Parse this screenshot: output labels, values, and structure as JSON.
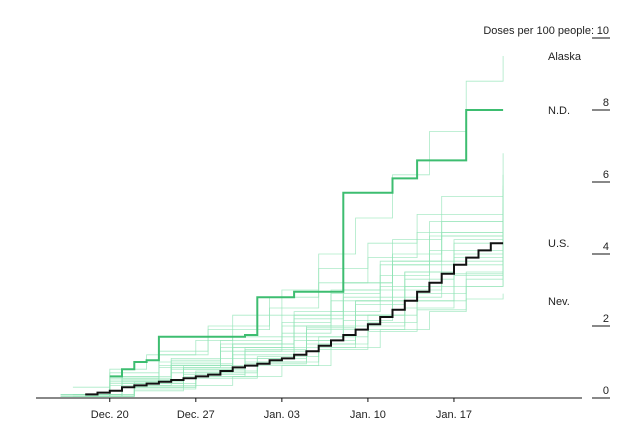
{
  "chart_data": {
    "type": "line",
    "ylabel": "Doses per 100 people:",
    "ylim": [
      0,
      10
    ],
    "xlim": [
      "2020-12-14",
      "2021-01-24"
    ],
    "y_ticks": [
      "0",
      "2",
      "4",
      "6",
      "8",
      "10"
    ],
    "x_ticks": [
      {
        "label": "Dec. 20",
        "date": "2020-12-20"
      },
      {
        "label": "Dec. 27",
        "date": "2020-12-27"
      },
      {
        "label": "Jan. 03",
        "date": "2021-01-03"
      },
      {
        "label": "Jan. 10",
        "date": "2021-01-10"
      },
      {
        "label": "Jan. 17",
        "date": "2021-01-17"
      }
    ],
    "step": true,
    "colors": {
      "highlight": "#3dbd70",
      "us": "#111111",
      "states": "#8fe3b4",
      "axis": "#111111"
    },
    "highlighted_series": [
      {
        "name": "N.D.",
        "label": "N.D.",
        "color": "#3dbd70",
        "points": [
          [
            "2020-12-20",
            0.6
          ],
          [
            "2020-12-21",
            0.8
          ],
          [
            "2020-12-22",
            1.0
          ],
          [
            "2020-12-23",
            1.05
          ],
          [
            "2020-12-24",
            1.7
          ],
          [
            "2020-12-31",
            1.75
          ],
          [
            "2021-01-01",
            2.8
          ],
          [
            "2021-01-04",
            2.95
          ],
          [
            "2021-01-08",
            5.7
          ],
          [
            "2021-01-12",
            6.1
          ],
          [
            "2021-01-14",
            6.6
          ],
          [
            "2021-01-18",
            8.0
          ],
          [
            "2021-01-21",
            8.0
          ]
        ]
      },
      {
        "name": "U.S.",
        "label": "U.S.",
        "color": "#111111",
        "points": [
          [
            "2020-12-18",
            0.1
          ],
          [
            "2020-12-19",
            0.15
          ],
          [
            "2020-12-20",
            0.2
          ],
          [
            "2020-12-21",
            0.3
          ],
          [
            "2020-12-22",
            0.35
          ],
          [
            "2020-12-23",
            0.4
          ],
          [
            "2020-12-24",
            0.45
          ],
          [
            "2020-12-25",
            0.5
          ],
          [
            "2020-12-26",
            0.55
          ],
          [
            "2020-12-27",
            0.6
          ],
          [
            "2020-12-28",
            0.65
          ],
          [
            "2020-12-29",
            0.75
          ],
          [
            "2020-12-30",
            0.85
          ],
          [
            "2020-12-31",
            0.9
          ],
          [
            "2021-01-01",
            0.95
          ],
          [
            "2021-01-02",
            1.05
          ],
          [
            "2021-01-03",
            1.1
          ],
          [
            "2021-01-04",
            1.2
          ],
          [
            "2021-01-05",
            1.3
          ],
          [
            "2021-01-06",
            1.45
          ],
          [
            "2021-01-07",
            1.6
          ],
          [
            "2021-01-08",
            1.75
          ],
          [
            "2021-01-09",
            1.9
          ],
          [
            "2021-01-10",
            2.05
          ],
          [
            "2021-01-11",
            2.25
          ],
          [
            "2021-01-12",
            2.45
          ],
          [
            "2021-01-13",
            2.7
          ],
          [
            "2021-01-14",
            2.95
          ],
          [
            "2021-01-15",
            3.2
          ],
          [
            "2021-01-16",
            3.45
          ],
          [
            "2021-01-17",
            3.7
          ],
          [
            "2021-01-18",
            3.9
          ],
          [
            "2021-01-19",
            4.1
          ],
          [
            "2021-01-20",
            4.3
          ],
          [
            "2021-01-21",
            4.3
          ]
        ]
      }
    ],
    "state_series": [
      {
        "label": "Alaska",
        "points": [
          [
            "2020-12-17",
            0.3
          ],
          [
            "2020-12-20",
            0.8
          ],
          [
            "2020-12-23",
            1.2
          ],
          [
            "2020-12-27",
            1.6
          ],
          [
            "2020-12-30",
            2.3
          ],
          [
            "2021-01-03",
            3.0
          ],
          [
            "2021-01-06",
            4.0
          ],
          [
            "2021-01-09",
            5.0
          ],
          [
            "2021-01-12",
            6.2
          ],
          [
            "2021-01-15",
            7.4
          ],
          [
            "2021-01-18",
            8.8
          ],
          [
            "2021-01-21",
            9.5
          ]
        ]
      },
      {
        "label": "Nev.",
        "points": [
          [
            "2020-12-18",
            0.05
          ],
          [
            "2020-12-22",
            0.2
          ],
          [
            "2020-12-26",
            0.35
          ],
          [
            "2020-12-30",
            0.6
          ],
          [
            "2021-01-03",
            0.9
          ],
          [
            "2021-01-07",
            1.4
          ],
          [
            "2021-01-11",
            1.9
          ],
          [
            "2021-01-15",
            2.4
          ],
          [
            "2021-01-18",
            2.75
          ],
          [
            "2021-01-21",
            2.9
          ]
        ]
      },
      {
        "points": [
          [
            "2020-12-16",
            0.05
          ],
          [
            "2020-12-20",
            0.5
          ],
          [
            "2020-12-25",
            0.9
          ],
          [
            "2020-12-30",
            1.5
          ],
          [
            "2021-01-04",
            2.3
          ],
          [
            "2021-01-08",
            3.2
          ],
          [
            "2021-01-12",
            4.4
          ],
          [
            "2021-01-16",
            5.6
          ],
          [
            "2021-01-21",
            6.8
          ]
        ]
      },
      {
        "points": [
          [
            "2020-12-16",
            0.1
          ],
          [
            "2020-12-20",
            0.55
          ],
          [
            "2020-12-24",
            1.0
          ],
          [
            "2020-12-29",
            1.5
          ],
          [
            "2021-01-03",
            2.1
          ],
          [
            "2021-01-07",
            2.9
          ],
          [
            "2021-01-11",
            3.8
          ],
          [
            "2021-01-15",
            4.9
          ],
          [
            "2021-01-21",
            6.2
          ]
        ]
      },
      {
        "points": [
          [
            "2020-12-17",
            0.1
          ],
          [
            "2020-12-21",
            0.5
          ],
          [
            "2020-12-25",
            0.9
          ],
          [
            "2020-12-30",
            1.4
          ],
          [
            "2021-01-04",
            2.0
          ],
          [
            "2021-01-08",
            2.8
          ],
          [
            "2021-01-12",
            3.7
          ],
          [
            "2021-01-16",
            4.6
          ],
          [
            "2021-01-21",
            5.6
          ]
        ]
      },
      {
        "points": [
          [
            "2020-12-17",
            0.05
          ],
          [
            "2020-12-21",
            0.4
          ],
          [
            "2020-12-26",
            0.8
          ],
          [
            "2020-12-31",
            1.3
          ],
          [
            "2021-01-05",
            1.9
          ],
          [
            "2021-01-09",
            2.7
          ],
          [
            "2021-01-13",
            3.5
          ],
          [
            "2021-01-17",
            4.4
          ],
          [
            "2021-01-21",
            5.2
          ]
        ]
      },
      {
        "points": [
          [
            "2020-12-16",
            0.1
          ],
          [
            "2020-12-20",
            0.6
          ],
          [
            "2020-12-24",
            1.2
          ],
          [
            "2020-12-28",
            1.9
          ],
          [
            "2021-01-02",
            2.5
          ],
          [
            "2021-01-06",
            3.2
          ],
          [
            "2021-01-10",
            3.9
          ],
          [
            "2021-01-14",
            4.6
          ],
          [
            "2021-01-21",
            5.3
          ]
        ]
      },
      {
        "points": [
          [
            "2020-12-18",
            0.05
          ],
          [
            "2020-12-22",
            0.3
          ],
          [
            "2020-12-27",
            0.7
          ],
          [
            "2021-01-01",
            1.1
          ],
          [
            "2021-01-05",
            1.6
          ],
          [
            "2021-01-09",
            2.3
          ],
          [
            "2021-01-13",
            3.1
          ],
          [
            "2021-01-17",
            3.9
          ],
          [
            "2021-01-21",
            4.8
          ]
        ]
      },
      {
        "points": [
          [
            "2020-12-17",
            0.1
          ],
          [
            "2020-12-21",
            0.45
          ],
          [
            "2020-12-25",
            0.8
          ],
          [
            "2020-12-30",
            1.2
          ],
          [
            "2021-01-04",
            1.7
          ],
          [
            "2021-01-08",
            2.3
          ],
          [
            "2021-01-12",
            3.0
          ],
          [
            "2021-01-16",
            3.7
          ],
          [
            "2021-01-21",
            4.5
          ]
        ]
      },
      {
        "points": [
          [
            "2020-12-18",
            0.05
          ],
          [
            "2020-12-22",
            0.35
          ],
          [
            "2020-12-26",
            0.65
          ],
          [
            "2020-12-31",
            1.0
          ],
          [
            "2021-01-05",
            1.5
          ],
          [
            "2021-01-09",
            2.0
          ],
          [
            "2021-01-13",
            2.7
          ],
          [
            "2021-01-17",
            3.4
          ],
          [
            "2021-01-21",
            4.1
          ]
        ]
      },
      {
        "points": [
          [
            "2020-12-16",
            0.05
          ],
          [
            "2020-12-20",
            0.4
          ],
          [
            "2020-12-24",
            0.85
          ],
          [
            "2020-12-29",
            1.3
          ],
          [
            "2021-01-03",
            1.8
          ],
          [
            "2021-01-07",
            2.4
          ],
          [
            "2021-01-11",
            3.1
          ],
          [
            "2021-01-15",
            3.8
          ],
          [
            "2021-01-21",
            4.6
          ]
        ]
      },
      {
        "points": [
          [
            "2020-12-18",
            0.1
          ],
          [
            "2020-12-22",
            0.4
          ],
          [
            "2020-12-27",
            0.75
          ],
          [
            "2021-01-01",
            1.15
          ],
          [
            "2021-01-06",
            1.7
          ],
          [
            "2021-01-10",
            2.3
          ],
          [
            "2021-01-14",
            2.9
          ],
          [
            "2021-01-18",
            3.5
          ],
          [
            "2021-01-21",
            3.9
          ]
        ]
      },
      {
        "points": [
          [
            "2020-12-17",
            0.05
          ],
          [
            "2020-12-21",
            0.3
          ],
          [
            "2020-12-26",
            0.6
          ],
          [
            "2020-12-31",
            0.95
          ],
          [
            "2021-01-05",
            1.4
          ],
          [
            "2021-01-09",
            1.9
          ],
          [
            "2021-01-13",
            2.5
          ],
          [
            "2021-01-17",
            3.1
          ],
          [
            "2021-01-21",
            3.6
          ]
        ]
      },
      {
        "points": [
          [
            "2020-12-16",
            0.1
          ],
          [
            "2020-12-20",
            0.7
          ],
          [
            "2020-12-24",
            1.3
          ],
          [
            "2020-12-28",
            2.0
          ],
          [
            "2021-01-02",
            2.8
          ],
          [
            "2021-01-06",
            3.6
          ],
          [
            "2021-01-10",
            4.3
          ],
          [
            "2021-01-14",
            5.1
          ],
          [
            "2021-01-21",
            5.9
          ]
        ]
      },
      {
        "points": [
          [
            "2020-12-17",
            0.05
          ],
          [
            "2020-12-21",
            0.5
          ],
          [
            "2020-12-25",
            0.95
          ],
          [
            "2020-12-30",
            1.5
          ],
          [
            "2021-01-04",
            2.2
          ],
          [
            "2021-01-08",
            3.0
          ],
          [
            "2021-01-12",
            3.8
          ],
          [
            "2021-01-16",
            4.5
          ],
          [
            "2021-01-21",
            5.0
          ]
        ]
      },
      {
        "points": [
          [
            "2020-12-18",
            0.1
          ],
          [
            "2020-12-22",
            0.45
          ],
          [
            "2020-12-26",
            0.85
          ],
          [
            "2020-12-31",
            1.35
          ],
          [
            "2021-01-05",
            1.95
          ],
          [
            "2021-01-09",
            2.6
          ],
          [
            "2021-01-13",
            3.3
          ],
          [
            "2021-01-17",
            4.0
          ],
          [
            "2021-01-21",
            4.4
          ]
        ]
      },
      {
        "points": [
          [
            "2020-12-16",
            0.05
          ],
          [
            "2020-12-20",
            0.35
          ],
          [
            "2020-12-25",
            0.7
          ],
          [
            "2020-12-30",
            1.1
          ],
          [
            "2021-01-04",
            1.6
          ],
          [
            "2021-01-08",
            2.15
          ],
          [
            "2021-01-12",
            2.8
          ],
          [
            "2021-01-16",
            3.45
          ],
          [
            "2021-01-21",
            4.0
          ]
        ]
      },
      {
        "points": [
          [
            "2020-12-17",
            0.1
          ],
          [
            "2020-12-21",
            0.55
          ],
          [
            "2020-12-25",
            1.05
          ],
          [
            "2020-12-29",
            1.6
          ],
          [
            "2021-01-03",
            2.3
          ],
          [
            "2021-01-07",
            3.0
          ],
          [
            "2021-01-11",
            3.7
          ],
          [
            "2021-01-15",
            4.5
          ],
          [
            "2021-01-21",
            5.4
          ]
        ]
      },
      {
        "points": [
          [
            "2020-12-18",
            0.05
          ],
          [
            "2020-12-22",
            0.3
          ],
          [
            "2020-12-27",
            0.6
          ],
          [
            "2021-01-01",
            1.0
          ],
          [
            "2021-01-06",
            1.5
          ],
          [
            "2021-01-10",
            2.1
          ],
          [
            "2021-01-14",
            2.7
          ],
          [
            "2021-01-18",
            3.3
          ],
          [
            "2021-01-21",
            3.7
          ]
        ]
      },
      {
        "points": [
          [
            "2020-12-17",
            0.1
          ],
          [
            "2020-12-21",
            0.6
          ],
          [
            "2020-12-25",
            1.1
          ],
          [
            "2020-12-30",
            1.7
          ],
          [
            "2021-01-04",
            2.4
          ],
          [
            "2021-01-08",
            3.2
          ],
          [
            "2021-01-12",
            4.0
          ],
          [
            "2021-01-16",
            4.9
          ],
          [
            "2021-01-21",
            5.8
          ]
        ]
      },
      {
        "points": [
          [
            "2020-12-16",
            0.05
          ],
          [
            "2020-12-20",
            0.45
          ],
          [
            "2020-12-24",
            0.9
          ],
          [
            "2020-12-29",
            1.4
          ],
          [
            "2021-01-03",
            2.0
          ],
          [
            "2021-01-07",
            2.7
          ],
          [
            "2021-01-11",
            3.4
          ],
          [
            "2021-01-15",
            4.1
          ],
          [
            "2021-01-21",
            4.9
          ]
        ]
      },
      {
        "points": [
          [
            "2020-12-18",
            0.05
          ],
          [
            "2020-12-22",
            0.25
          ],
          [
            "2020-12-27",
            0.55
          ],
          [
            "2021-01-01",
            0.9
          ],
          [
            "2021-01-06",
            1.35
          ],
          [
            "2021-01-10",
            1.85
          ],
          [
            "2021-01-14",
            2.45
          ],
          [
            "2021-01-18",
            3.1
          ],
          [
            "2021-01-21",
            3.4
          ]
        ]
      },
      {
        "points": [
          [
            "2020-12-17",
            0.1
          ],
          [
            "2020-12-21",
            0.5
          ],
          [
            "2020-12-26",
            0.9
          ],
          [
            "2020-12-31",
            1.4
          ],
          [
            "2021-01-05",
            2.0
          ],
          [
            "2021-01-09",
            2.7
          ],
          [
            "2021-01-13",
            3.5
          ],
          [
            "2021-01-17",
            4.3
          ],
          [
            "2021-01-21",
            4.7
          ]
        ]
      }
    ]
  }
}
